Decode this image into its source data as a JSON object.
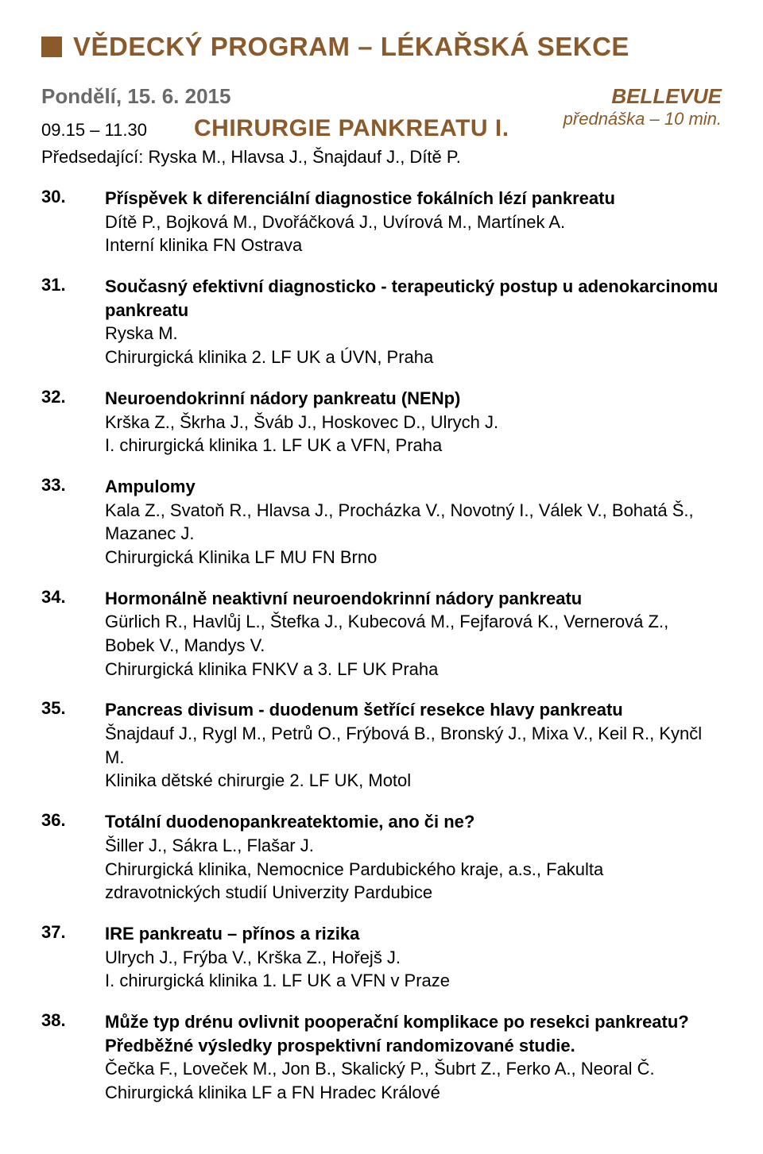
{
  "colors": {
    "brand": "#8b5a2b",
    "gray": "#6a6a6a",
    "text": "#000000",
    "bg": "#ffffff"
  },
  "typography": {
    "base_font": "Arial, Helvetica, sans-serif",
    "header_size_pt": 33,
    "date_size_pt": 26,
    "session_title_size_pt": 30,
    "body_size_pt": 22
  },
  "header": {
    "title": "VĚDECKÝ PROGRAM – LÉKAŘSKÁ SEKCE"
  },
  "session": {
    "date": "Pondělí, 15. 6. 2015",
    "time": "09.15 – 11.30",
    "title": "CHIRURGIE PANKREATU I.",
    "chairs_label": "Předsedající:",
    "chairs": "Ryska M., Hlavsa J., Šnajdauf J., Dítě P.",
    "room": "BELLEVUE",
    "lecture_time": "přednáška – 10 min."
  },
  "entries": [
    {
      "num": "30.",
      "title": "Příspěvek k diferenciální diagnostice fokálních lézí pankreatu",
      "authors": "Dítě P., Bojková M., Dvořáčková J., Uvírová M., Martínek A.",
      "inst": "Interní klinika FN Ostrava"
    },
    {
      "num": "31.",
      "title": "Současný efektivní diagnosticko - terapeutický postup u adenokarcinomu pankreatu",
      "authors": "Ryska M.",
      "inst": "Chirurgická klinika 2. LF UK a ÚVN, Praha"
    },
    {
      "num": "32.",
      "title": "Neuroendokrinní nádory pankreatu (NENp)",
      "authors": "Krška Z., Škrha J., Šváb J., Hoskovec D., Ulrych J.",
      "inst": "I. chirurgická klinika 1. LF UK a VFN, Praha"
    },
    {
      "num": "33.",
      "title": "Ampulomy",
      "authors": "Kala Z., Svatoň R., Hlavsa J., Procházka V., Novotný I., Válek V., Bohatá Š., Mazanec J.",
      "inst": "Chirurgická Klinika LF MU FN Brno"
    },
    {
      "num": "34.",
      "title": "Hormonálně neaktivní neuroendokrinní nádory pankreatu",
      "authors": "Gürlich R., Havlůj L., Štefka J., Kubecová M., Fejfarová K., Vernerová Z., Bobek V., Mandys V.",
      "inst": "Chirurgická klinika FNKV a 3. LF UK Praha"
    },
    {
      "num": "35.",
      "title": "Pancreas divisum - duodenum šetřící resekce hlavy pankreatu",
      "authors": "Šnajdauf J., Rygl M., Petrů O., Frýbová B., Bronský J., Mixa V., Keil R., Kynčl M.",
      "inst": "Klinika dětské chirurgie 2. LF UK, Motol"
    },
    {
      "num": "36.",
      "title": "Totální duodenopankreatektomie, ano či ne?",
      "authors": "Šiller J., Sákra L., Flašar J.",
      "inst": "Chirurgická klinika, Nemocnice Pardubického kraje, a.s., Fakulta zdravotnických studií Univerzity Pardubice"
    },
    {
      "num": "37.",
      "title": "IRE pankreatu – přínos a rizika",
      "authors": "Ulrych J., Frýba V., Krška Z., Hořejš J.",
      "inst": "I. chirurgická klinika 1. LF UK a VFN v Praze"
    },
    {
      "num": "38.",
      "title": "Může typ drénu ovlivnit pooperační komplikace po resekci pankreatu? Předběžné výsledky prospektivní randomizované studie.",
      "authors": "Čečka F., Loveček M., Jon B., Skalický P., Šubrt Z., Ferko A., Neoral Č.",
      "inst": "Chirurgická klinika LF a FN Hradec Králové"
    }
  ]
}
